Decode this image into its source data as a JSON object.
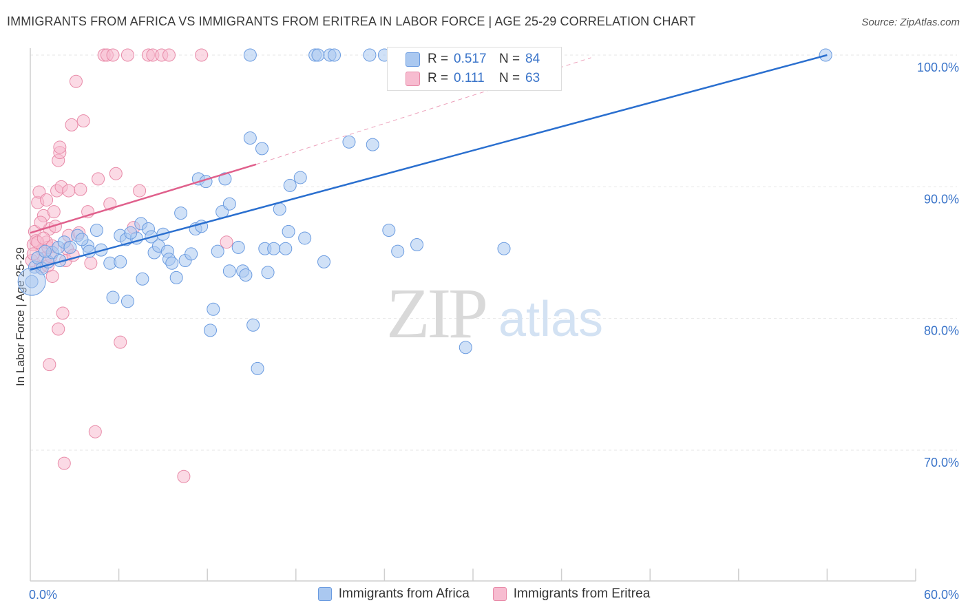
{
  "header": {
    "title": "IMMIGRANTS FROM AFRICA VS IMMIGRANTS FROM ERITREA IN LABOR FORCE | AGE 25-29 CORRELATION CHART",
    "source": "Source: ZipAtlas.com"
  },
  "watermark": {
    "zip": "ZIP",
    "atlas": "atlas"
  },
  "stats": {
    "africa": {
      "r_label": "R =",
      "r": "0.517",
      "n_label": "N =",
      "n": "84"
    },
    "eritrea": {
      "r_label": "R =",
      "r": "0.111",
      "n_label": "N =",
      "n": "63"
    }
  },
  "legend": {
    "africa": "Immigrants from Africa",
    "eritrea": "Immigrants from Eritrea"
  },
  "colors": {
    "africa_fill": "#aac8f0",
    "africa_stroke": "#6a9be0",
    "africa_line": "#2a6fcf",
    "eritrea_fill": "#f7bcd0",
    "eritrea_stroke": "#e88aa8",
    "eritrea_line": "#e0608c",
    "tick_text": "#3a74c9",
    "grid": "#e6e6e6"
  },
  "chart_data": {
    "type": "scatter",
    "title": "IMMIGRANTS FROM AFRICA VS IMMIGRANTS FROM ERITREA IN LABOR FORCE | AGE 25-29 CORRELATION CHART",
    "xlabel": "",
    "ylabel": "In Labor Force | Age 25-29",
    "xlim": [
      0,
      60
    ],
    "ylim": [
      60,
      103.5
    ],
    "x_ticks": [
      {
        "value": 0,
        "label": "0.0%"
      },
      {
        "value": 60,
        "label": "60.0%"
      }
    ],
    "y_ticks": [
      {
        "value": 70,
        "label": "70.0%"
      },
      {
        "value": 80,
        "label": "80.0%"
      },
      {
        "value": 90,
        "label": "90.0%"
      },
      {
        "value": 100,
        "label": "100.0%"
      }
    ],
    "grid": true,
    "legend_position": "bottom",
    "series": [
      {
        "name": "Immigrants from Africa",
        "color": "#aac8f0",
        "trend": {
          "x0": 0,
          "y0": 83.7,
          "x1": 54.0,
          "y1": 100.0
        },
        "points": [
          [
            0.1,
            82.8
          ],
          [
            0.3,
            83.9
          ],
          [
            0.5,
            84.6
          ],
          [
            0.8,
            83.8
          ],
          [
            1.2,
            84.3
          ],
          [
            1.5,
            85.0
          ],
          [
            1.9,
            85.4
          ],
          [
            2.3,
            85.8
          ],
          [
            2.7,
            85.4
          ],
          [
            3.2,
            86.3
          ],
          [
            3.9,
            85.5
          ],
          [
            4.0,
            85.1
          ],
          [
            4.5,
            86.7
          ],
          [
            4.8,
            85.2
          ],
          [
            5.4,
            84.2
          ],
          [
            5.6,
            81.6
          ],
          [
            6.1,
            86.3
          ],
          [
            6.1,
            84.3
          ],
          [
            6.5,
            86.0
          ],
          [
            6.6,
            81.3
          ],
          [
            7.2,
            86.1
          ],
          [
            7.5,
            87.2
          ],
          [
            7.6,
            83.0
          ],
          [
            8.0,
            86.8
          ],
          [
            8.2,
            86.2
          ],
          [
            8.4,
            85.0
          ],
          [
            8.7,
            85.5
          ],
          [
            9.0,
            86.4
          ],
          [
            9.3,
            85.1
          ],
          [
            9.4,
            84.5
          ],
          [
            9.6,
            84.2
          ],
          [
            9.9,
            83.1
          ],
          [
            10.2,
            88.0
          ],
          [
            10.5,
            84.4
          ],
          [
            11.2,
            86.8
          ],
          [
            11.4,
            90.6
          ],
          [
            11.6,
            87.0
          ],
          [
            11.9,
            90.4
          ],
          [
            12.2,
            79.1
          ],
          [
            12.4,
            80.7
          ],
          [
            12.7,
            85.1
          ],
          [
            13.0,
            88.1
          ],
          [
            13.2,
            90.6
          ],
          [
            13.5,
            88.7
          ],
          [
            13.5,
            83.6
          ],
          [
            14.1,
            85.4
          ],
          [
            14.4,
            83.6
          ],
          [
            14.6,
            83.3
          ],
          [
            14.9,
            100.0
          ],
          [
            14.9,
            93.7
          ],
          [
            15.1,
            79.5
          ],
          [
            15.4,
            76.2
          ],
          [
            15.7,
            92.9
          ],
          [
            15.9,
            85.3
          ],
          [
            16.1,
            83.5
          ],
          [
            16.5,
            85.3
          ],
          [
            16.9,
            88.3
          ],
          [
            17.3,
            85.3
          ],
          [
            17.5,
            86.6
          ],
          [
            17.6,
            90.1
          ],
          [
            18.3,
            90.7
          ],
          [
            18.6,
            86.1
          ],
          [
            19.3,
            100.0
          ],
          [
            19.5,
            100.0
          ],
          [
            19.9,
            84.3
          ],
          [
            20.3,
            100.0
          ],
          [
            20.6,
            100.0
          ],
          [
            21.6,
            93.4
          ],
          [
            23.0,
            100.0
          ],
          [
            23.2,
            93.2
          ],
          [
            24.3,
            86.7
          ],
          [
            24.9,
            85.1
          ],
          [
            26.2,
            85.6
          ],
          [
            29.5,
            77.8
          ],
          [
            30.2,
            100.0
          ],
          [
            32.1,
            85.3
          ],
          [
            34.6,
            100.0
          ],
          [
            53.9,
            100.0
          ],
          [
            24.0,
            100.0
          ],
          [
            1.0,
            85.1
          ],
          [
            3.5,
            86.0
          ],
          [
            6.8,
            86.5
          ],
          [
            10.9,
            84.9
          ],
          [
            2.0,
            84.4
          ]
        ]
      },
      {
        "name": "Immigrants from Eritrea",
        "color": "#f7bcd0",
        "trend": {
          "x0": 0,
          "y0": 86.5,
          "x1": 15.3,
          "y1": 91.7,
          "dashed_to_x": 38.0,
          "dashed_to_y": 99.8
        },
        "points": [
          [
            0.1,
            84.4
          ],
          [
            0.2,
            85.6
          ],
          [
            0.3,
            86.6
          ],
          [
            0.4,
            85.9
          ],
          [
            0.5,
            88.8
          ],
          [
            0.6,
            89.6
          ],
          [
            0.7,
            83.9
          ],
          [
            0.8,
            85.2
          ],
          [
            0.9,
            87.8
          ],
          [
            1.0,
            84.6
          ],
          [
            1.1,
            85.8
          ],
          [
            1.2,
            84.0
          ],
          [
            1.3,
            86.8
          ],
          [
            1.4,
            84.7
          ],
          [
            1.5,
            83.2
          ],
          [
            1.6,
            88.1
          ],
          [
            1.1,
            89.0
          ],
          [
            1.2,
            85.4
          ],
          [
            1.3,
            76.5
          ],
          [
            1.7,
            87.0
          ],
          [
            1.8,
            89.7
          ],
          [
            1.9,
            92.0
          ],
          [
            2.0,
            92.6
          ],
          [
            2.0,
            93.0
          ],
          [
            2.1,
            90.0
          ],
          [
            2.2,
            80.4
          ],
          [
            2.3,
            69.0
          ],
          [
            2.4,
            84.4
          ],
          [
            2.5,
            85.3
          ],
          [
            2.6,
            86.3
          ],
          [
            2.8,
            94.7
          ],
          [
            2.9,
            84.8
          ],
          [
            3.1,
            98.0
          ],
          [
            3.4,
            89.8
          ],
          [
            3.6,
            95.0
          ],
          [
            3.9,
            88.1
          ],
          [
            4.1,
            84.2
          ],
          [
            4.4,
            71.4
          ],
          [
            4.6,
            90.6
          ],
          [
            5.0,
            100.0
          ],
          [
            5.2,
            100.0
          ],
          [
            5.4,
            88.7
          ],
          [
            5.6,
            100.0
          ],
          [
            5.8,
            91.0
          ],
          [
            6.1,
            78.2
          ],
          [
            6.6,
            100.0
          ],
          [
            7.0,
            86.9
          ],
          [
            7.4,
            89.7
          ],
          [
            8.0,
            100.0
          ],
          [
            8.3,
            100.0
          ],
          [
            8.9,
            100.0
          ],
          [
            9.4,
            100.0
          ],
          [
            10.4,
            68.0
          ],
          [
            11.6,
            100.0
          ],
          [
            13.3,
            85.8
          ],
          [
            0.5,
            85.8
          ],
          [
            0.9,
            86.1
          ],
          [
            1.9,
            79.2
          ],
          [
            3.3,
            86.5
          ],
          [
            0.2,
            84.9
          ],
          [
            0.7,
            87.3
          ],
          [
            1.5,
            85.5
          ],
          [
            2.6,
            89.7
          ]
        ]
      }
    ]
  }
}
